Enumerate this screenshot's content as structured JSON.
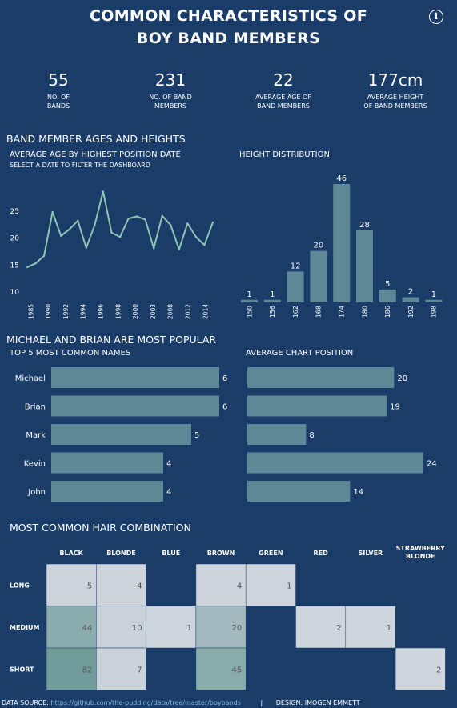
{
  "header": {
    "title_line1": "COMMON CHARACTERISTICS OF",
    "title_line2": "BOY BAND MEMBERS",
    "info_icon": "info-icon"
  },
  "kpis": [
    {
      "value": "55",
      "label1": "NO. OF",
      "label2": "BANDS"
    },
    {
      "value": "231",
      "label1": "NO. OF BAND",
      "label2": "MEMBERS"
    },
    {
      "value": "22",
      "label1": "AVERAGE AGE OF",
      "label2": "BAND MEMBERS"
    },
    {
      "value": "177cm",
      "label1": "AVERAGE HEIGHT",
      "label2": "OF BAND MEMBERS"
    }
  ],
  "sections": {
    "ages_heights": "BAND MEMBER AGES AND HEIGHTS",
    "line_title": "AVERAGE AGE BY HIGHEST POSITION DATE",
    "line_subtitle": "SELECT A DATE TO FILTER THE DASHBOARD",
    "hist_title": "HEIGHT DISTRIBUTION",
    "popular": "MICHAEL AND BRIAN ARE MOST POPULAR",
    "names_title": "TOP 5 MOST COMMON NAMES",
    "chart_pos_title": "AVERAGE CHART POSITION",
    "hair": "MOST COMMON HAIR COMBINATION"
  },
  "footer": {
    "source_label": "DATA SOURCE:",
    "source_url": "https://github.com/the-pudding/data/tree/master/boybands",
    "separator": "|",
    "design": "DESIGN: IMOGEN EMMETT"
  },
  "colors": {
    "background": "#1a3c68",
    "bar": "#5d8896",
    "line": "#8ec5b3",
    "heat_low": "#d2d7df",
    "heat_high": "#6f9b98"
  },
  "chart_data": [
    {
      "type": "line",
      "title": "AVERAGE AGE BY HIGHEST POSITION DATE",
      "x_tick_labels": [
        "1985",
        "1990",
        "1992",
        "1994",
        "1996",
        "1998",
        "2000",
        "2003",
        "2008",
        "2012",
        "2014"
      ],
      "y_ticks": [
        10,
        15,
        20,
        25
      ],
      "ylim": [
        10,
        30
      ],
      "values": [
        14.6,
        15.3,
        16.7,
        24.8,
        20.4,
        21.6,
        23.2,
        18.2,
        22.4,
        28.6,
        21.0,
        20.2,
        23.6,
        24.0,
        23.4,
        18.1,
        24.1,
        22.4,
        17.9,
        22.7,
        20.2,
        18.7,
        22.9
      ],
      "grid": false
    },
    {
      "type": "bar",
      "title": "HEIGHT DISTRIBUTION",
      "categories": [
        "150",
        "156",
        "162",
        "168",
        "174",
        "180",
        "186",
        "192",
        "198"
      ],
      "values": [
        1,
        1,
        12,
        20,
        46,
        28,
        5,
        2,
        1
      ],
      "ylim": [
        0,
        46
      ]
    },
    {
      "type": "bar",
      "orientation": "horizontal",
      "title": "TOP 5 MOST COMMON NAMES",
      "categories": [
        "Michael",
        "Brian",
        "Mark",
        "Kevin",
        "John"
      ],
      "values": [
        6,
        6,
        5,
        4,
        4
      ]
    },
    {
      "type": "bar",
      "orientation": "horizontal",
      "title": "AVERAGE CHART POSITION",
      "categories": [
        "Michael",
        "Brian",
        "Mark",
        "Kevin",
        "John"
      ],
      "values": [
        20,
        19,
        8,
        24,
        14
      ]
    },
    {
      "type": "heatmap",
      "title": "MOST COMMON HAIR COMBINATION",
      "columns": [
        "BLACK",
        "BLONDE",
        "BLUE",
        "BROWN",
        "GREEN",
        "RED",
        "SILVER",
        "STRAWBERRY BLONDE"
      ],
      "rows": [
        "LONG",
        "MEDIUM",
        "SHORT"
      ],
      "values": [
        [
          5,
          4,
          null,
          4,
          1,
          null,
          null,
          null
        ],
        [
          44,
          10,
          1,
          20,
          null,
          2,
          1,
          null
        ],
        [
          82,
          7,
          null,
          45,
          null,
          null,
          null,
          2
        ]
      ]
    }
  ]
}
